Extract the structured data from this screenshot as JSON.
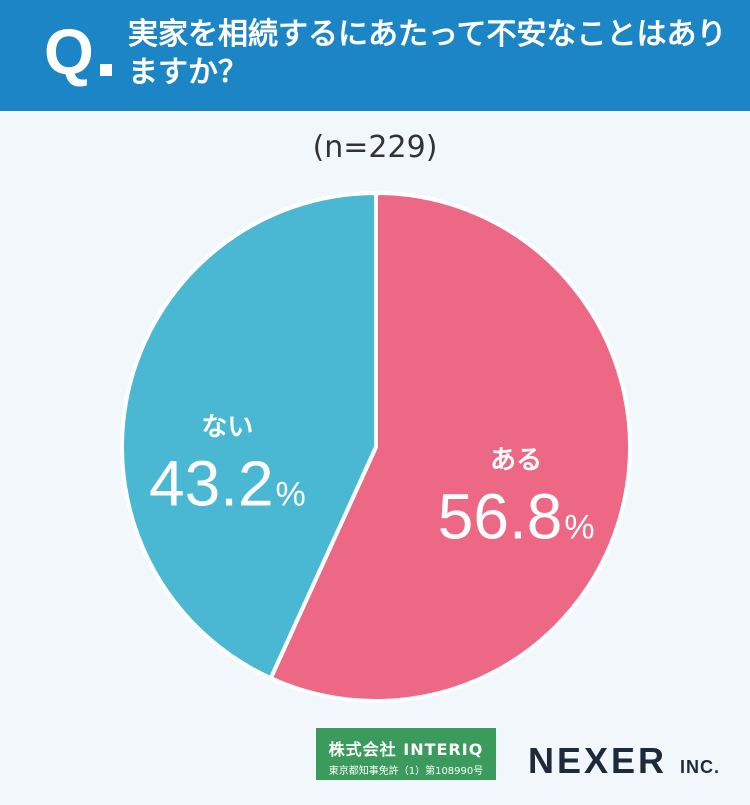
{
  "header": {
    "q_mark": "Q",
    "question": "実家を相続するにあたって不安なことはありますか？"
  },
  "sample_label": "(n=229)",
  "chart_data": {
    "type": "pie",
    "title": "実家を相続するにあたって不安なことはありますか？",
    "slices": [
      {
        "label": "ある",
        "value": 56.8,
        "display": "56.8",
        "color": "#ec6884"
      },
      {
        "label": "ない",
        "value": 43.2,
        "display": "43.2",
        "color": "#4bb8d3"
      }
    ],
    "unit": "%",
    "start": "12 o'clock, clockwise"
  },
  "footer": {
    "badge_line1": "株式会社 INTERIQ",
    "badge_line2": "東京都知事免許（1）第108990号",
    "brand": "NEXER",
    "brand_suffix": "INC."
  }
}
